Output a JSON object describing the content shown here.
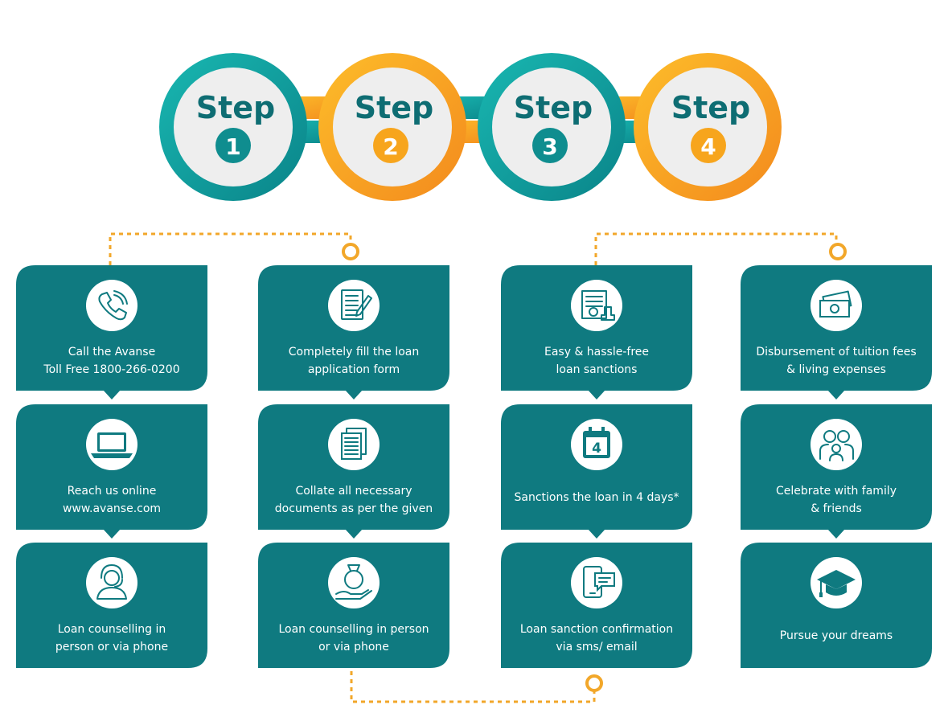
{
  "colors": {
    "teal": "#11a5a3",
    "teal_dark": "#0d7a7e",
    "orange": "#f9a31a",
    "box": "#0f7a80",
    "circle_fill": "#eeeeee",
    "text_dark": "#0e6d73",
    "connector": "#f2a72a"
  },
  "steps": [
    {
      "label": "Step",
      "number": "1",
      "accent": "teal"
    },
    {
      "label": "Step",
      "number": "2",
      "accent": "orange"
    },
    {
      "label": "Step",
      "number": "3",
      "accent": "teal"
    },
    {
      "label": "Step",
      "number": "4",
      "accent": "orange"
    }
  ],
  "columns": [
    {
      "boxes": [
        {
          "icon": "phone-icon",
          "lines": [
            "Call the Avanse",
            "Toll Free 1800-266-0200"
          ]
        },
        {
          "icon": "laptop-icon",
          "lines": [
            "Reach us online",
            "www.avanse.com"
          ]
        },
        {
          "icon": "counsellor-headset-icon",
          "lines": [
            "Loan counselling in",
            "person or via phone"
          ]
        }
      ]
    },
    {
      "boxes": [
        {
          "icon": "application-form-icon",
          "lines": [
            "Completely fill the loan",
            "application form"
          ]
        },
        {
          "icon": "documents-icon",
          "lines": [
            "Collate all necessary",
            "documents as per the given"
          ]
        },
        {
          "icon": "money-bag-hand-icon",
          "lines": [
            "Loan counselling in person",
            "or via phone"
          ]
        }
      ]
    },
    {
      "boxes": [
        {
          "icon": "sanction-certificate-icon",
          "lines": [
            "Easy & hassle-free",
            "loan sanctions"
          ]
        },
        {
          "icon": "calendar-icon",
          "calendar_number": "4",
          "lines": [
            "Sanctions the loan in 4 days*"
          ]
        },
        {
          "icon": "mobile-message-icon",
          "lines": [
            "Loan sanction confirmation",
            "via sms/ email"
          ]
        }
      ]
    },
    {
      "boxes": [
        {
          "icon": "cash-icon",
          "lines": [
            "Disbursement of tuition fees",
            "& living expenses"
          ]
        },
        {
          "icon": "family-icon",
          "lines": [
            "Celebrate with family",
            "& friends"
          ]
        },
        {
          "icon": "graduation-cap-icon",
          "lines": [
            "Pursue your dreams"
          ]
        }
      ]
    }
  ]
}
